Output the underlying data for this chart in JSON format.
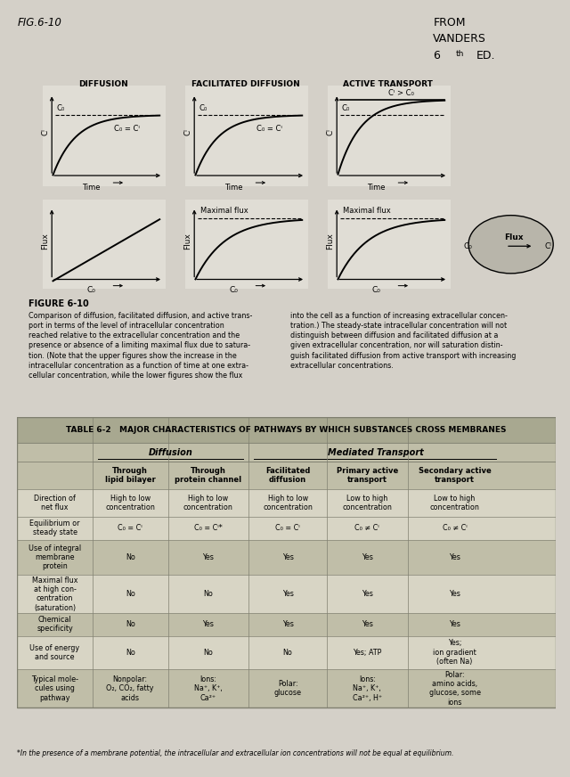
{
  "bg_color": "#e0ddd5",
  "page_bg": "#d4d0c8",
  "fig_label": "FIG.6-10",
  "from_line1": "FROM",
  "from_line2": "VANDERS",
  "from_line3": "6",
  "from_line4": "ED.",
  "panel_titles": [
    "DIFFUSION",
    "FACILITATED DIFFUSION",
    "ACTIVE TRANSPORT"
  ],
  "upper_annotations": [
    {
      "co_label": "C₀",
      "ci_label": "C₀ = Cᴵ",
      "type": "asymptote"
    },
    {
      "co_label": "C₀",
      "ci_label": "C₀ = Cᴵ",
      "type": "asymptote"
    },
    {
      "co_label": "C₀",
      "ci_label": "Cᴵ > C₀",
      "type": "above"
    }
  ],
  "lower_maxflux": [
    false,
    true,
    true
  ],
  "figure_caption_bold": "FIGURE 6-10",
  "left_caption": "Comparison of diffusion, facilitated diffusion, and active trans-\nport in terms of the level of intracellular concentration\nreached relative to the extracellular concentration and the\npresence or absence of a limiting maximal flux due to satura-\ntion. (Note that the upper figures show the increase in the\nintracellular concentration as a function of time at one extra-\ncellular concentration, while the lower figures show the flux",
  "right_caption": "into the cell as a function of increasing extracellular concen-\ntration.) The steady-state intracellular concentration will not\ndistinguish between diffusion and facilitated diffusion at a\ngiven extracellular concentration, nor will saturation distin-\nguish facilitated diffusion from active transport with increasing\nextracellular concentrations.",
  "table_title": "TABLE 6-2   MAJOR CHARACTERISTICS OF PATHWAYS BY WHICH SUBSTANCES CROSS MEMBRANES",
  "rows": [
    [
      "Direction of\nnet flux",
      "High to low\nconcentration",
      "High to low\nconcentration",
      "High to low\nconcentration",
      "Low to high\nconcentration",
      "Low to high\nconcentration"
    ],
    [
      "Equilibrium or\nsteady state",
      "C₀ = Cᴵ",
      "C₀ = Cᴵ*",
      "C₀ = Cᴵ",
      "C₀ ≠ Cᴵ",
      "C₀ ≠ Cᴵ"
    ],
    [
      "Use of integral\nmembrane\nprotein",
      "No",
      "Yes",
      "Yes",
      "Yes",
      "Yes"
    ],
    [
      "Maximal flux\nat high con-\ncentration\n(saturation)",
      "No",
      "No",
      "Yes",
      "Yes",
      "Yes"
    ],
    [
      "Chemical\nspecificity",
      "No",
      "Yes",
      "Yes",
      "Yes",
      "Yes"
    ],
    [
      "Use of energy\nand source",
      "No",
      "No",
      "No",
      "Yes; ATP",
      "Yes;\nion gradient\n(often Na)"
    ],
    [
      "Typical mole-\ncules using\npathway",
      "Nonpolar:\nO₂, CO₂, fatty\nacids",
      "Ions:\nNa⁺, K⁺,\nCa²⁺",
      "Polar:\nglucose",
      "Ions:\nNa⁺, K⁺,\nCa²⁺, H⁺",
      "Polar:\namino acids,\nglucose, some\nions"
    ]
  ],
  "footnote": "*In the presence of a membrane potential, the intracellular and extracellular ion concentrations will not be equal at equilibrium.",
  "table_header_bg": "#a8a890",
  "table_subheader_bg": "#c0bea8",
  "table_row_bg_dark": "#c0bea8",
  "table_row_bg_light": "#d8d5c5",
  "table_border_color": "#808070"
}
